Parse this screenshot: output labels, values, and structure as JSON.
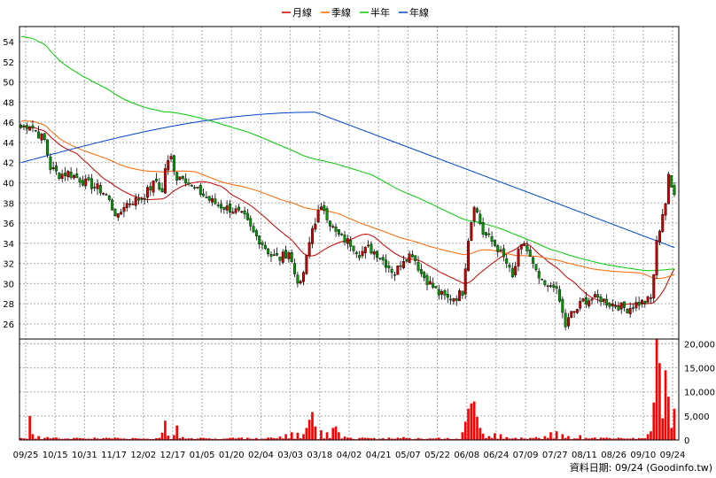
{
  "chart_data": {
    "type": "candlestick",
    "legend": [
      {
        "name": "月線",
        "color": "#cc0000"
      },
      {
        "name": "季線",
        "color": "#ff6600"
      },
      {
        "name": "半年",
        "color": "#00cc00"
      },
      {
        "name": "年線",
        "color": "#0044cc"
      }
    ],
    "price_axis": {
      "ticks": [
        26,
        28,
        30,
        32,
        34,
        36,
        38,
        40,
        42,
        44,
        46,
        48,
        50,
        52,
        54
      ],
      "ylim": [
        24.5,
        55.5
      ]
    },
    "volume_axis": {
      "ticks": [
        "0",
        "5,000",
        "10,000",
        "15,000",
        "20,000"
      ],
      "tick_values": [
        0,
        5000,
        10000,
        15000,
        20000
      ],
      "ylim": [
        0,
        21000
      ]
    },
    "x_ticks": [
      "09/25",
      "10/15",
      "10/31",
      "11/17",
      "12/02",
      "12/17",
      "01/05",
      "01/20",
      "02/04",
      "03/03",
      "03/18",
      "04/02",
      "04/21",
      "05/07",
      "05/22",
      "06/08",
      "06/24",
      "07/09",
      "07/27",
      "08/11",
      "08/26",
      "09/10",
      "09/24"
    ],
    "source_text": "資料日期: 09/24  (Goodinfo.tw)",
    "colors": {
      "up": "#cc0000",
      "down": "#009900",
      "volume": "#ff0000",
      "grid": "#aaaaaa"
    },
    "close_anchors": [
      [
        0,
        45.5
      ],
      [
        3,
        45.8
      ],
      [
        6,
        44.8
      ],
      [
        8,
        44.2
      ],
      [
        10,
        41.5
      ],
      [
        13,
        40.8
      ],
      [
        16,
        41
      ],
      [
        19,
        40.5
      ],
      [
        22,
        40
      ],
      [
        26,
        39.5
      ],
      [
        29,
        38.8
      ],
      [
        31,
        37.5
      ],
      [
        33,
        36.5
      ],
      [
        35,
        37.8
      ],
      [
        38,
        38.2
      ],
      [
        41,
        38.5
      ],
      [
        44,
        39.5
      ],
      [
        46,
        40.2
      ],
      [
        48,
        39
      ],
      [
        49,
        41.5
      ],
      [
        51,
        42.5
      ],
      [
        53,
        40.5
      ],
      [
        55,
        40.8
      ],
      [
        58,
        39.5
      ],
      [
        61,
        39
      ],
      [
        64,
        38.3
      ],
      [
        67,
        37.8
      ],
      [
        70,
        37.5
      ],
      [
        73,
        37.2
      ],
      [
        76,
        36.5
      ],
      [
        79,
        35
      ],
      [
        82,
        34
      ],
      [
        85,
        32.8
      ],
      [
        88,
        32.5
      ],
      [
        91,
        33.2
      ],
      [
        93,
        31
      ],
      [
        95,
        29.8
      ],
      [
        97,
        32.5
      ],
      [
        99,
        35.5
      ],
      [
        101,
        37
      ],
      [
        103,
        37.5
      ],
      [
        105,
        36
      ],
      [
        107,
        35
      ],
      [
        109,
        34.5
      ],
      [
        112,
        34
      ],
      [
        115,
        33
      ],
      [
        118,
        33.5
      ],
      [
        121,
        33
      ],
      [
        124,
        32
      ],
      [
        127,
        31
      ],
      [
        130,
        32.5
      ],
      [
        133,
        33
      ],
      [
        136,
        31
      ],
      [
        139,
        30
      ],
      [
        142,
        29
      ],
      [
        145,
        28.5
      ],
      [
        148,
        28.7
      ],
      [
        150,
        29.2
      ],
      [
        152,
        34.5
      ],
      [
        154,
        38
      ],
      [
        155,
        37
      ],
      [
        157,
        35
      ],
      [
        159,
        34.5
      ],
      [
        162,
        33.5
      ],
      [
        165,
        32
      ],
      [
        167,
        30.5
      ],
      [
        169,
        33
      ],
      [
        171,
        34
      ],
      [
        173,
        32.5
      ],
      [
        175,
        31
      ],
      [
        177,
        30
      ],
      [
        179,
        29.5
      ],
      [
        181,
        30
      ],
      [
        183,
        28.2
      ],
      [
        185,
        25.8
      ],
      [
        187,
        27
      ],
      [
        189,
        27.5
      ],
      [
        191,
        28.3
      ],
      [
        194,
        28.5
      ],
      [
        197,
        28.5
      ],
      [
        200,
        28
      ],
      [
        203,
        27.8
      ],
      [
        206,
        27.5
      ],
      [
        209,
        28
      ],
      [
        212,
        28.2
      ],
      [
        214,
        28.5
      ],
      [
        215,
        31
      ],
      [
        216,
        34
      ],
      [
        218,
        37
      ],
      [
        219,
        38
      ],
      [
        220,
        40.5
      ],
      [
        221,
        39.5
      ],
      [
        222,
        39.2
      ]
    ],
    "volume_anchors": [
      [
        0,
        400
      ],
      [
        3,
        5000
      ],
      [
        4,
        1200
      ],
      [
        6,
        800
      ],
      [
        9,
        600
      ],
      [
        12,
        500
      ],
      [
        16,
        300
      ],
      [
        20,
        400
      ],
      [
        25,
        500
      ],
      [
        30,
        400
      ],
      [
        35,
        300
      ],
      [
        40,
        300
      ],
      [
        45,
        200
      ],
      [
        48,
        1500
      ],
      [
        49,
        4000
      ],
      [
        50,
        900
      ],
      [
        52,
        1000
      ],
      [
        53,
        3000
      ],
      [
        55,
        600
      ],
      [
        60,
        300
      ],
      [
        65,
        200
      ],
      [
        70,
        300
      ],
      [
        75,
        500
      ],
      [
        80,
        400
      ],
      [
        85,
        500
      ],
      [
        88,
        700
      ],
      [
        90,
        1200
      ],
      [
        92,
        1600
      ],
      [
        94,
        1500
      ],
      [
        96,
        1200
      ],
      [
        97,
        2500
      ],
      [
        98,
        4200
      ],
      [
        99,
        5800
      ],
      [
        100,
        2800
      ],
      [
        102,
        2000
      ],
      [
        104,
        1600
      ],
      [
        106,
        2500
      ],
      [
        107,
        2800
      ],
      [
        108,
        1600
      ],
      [
        110,
        700
      ],
      [
        115,
        400
      ],
      [
        120,
        400
      ],
      [
        125,
        500
      ],
      [
        130,
        600
      ],
      [
        135,
        400
      ],
      [
        140,
        300
      ],
      [
        145,
        400
      ],
      [
        150,
        1600
      ],
      [
        151,
        3800
      ],
      [
        152,
        6500
      ],
      [
        153,
        7600
      ],
      [
        154,
        8000
      ],
      [
        155,
        4800
      ],
      [
        156,
        2500
      ],
      [
        157,
        1300
      ],
      [
        159,
        800
      ],
      [
        161,
        1400
      ],
      [
        163,
        1200
      ],
      [
        165,
        600
      ],
      [
        170,
        500
      ],
      [
        175,
        600
      ],
      [
        178,
        800
      ],
      [
        180,
        1600
      ],
      [
        182,
        1800
      ],
      [
        184,
        1200
      ],
      [
        186,
        800
      ],
      [
        190,
        1000
      ],
      [
        195,
        500
      ],
      [
        200,
        400
      ],
      [
        205,
        300
      ],
      [
        210,
        400
      ],
      [
        213,
        1200
      ],
      [
        214,
        1800
      ],
      [
        215,
        7800
      ],
      [
        216,
        21000
      ],
      [
        217,
        16000
      ],
      [
        218,
        4500
      ],
      [
        219,
        14500
      ],
      [
        220,
        9000
      ],
      [
        221,
        2500
      ],
      [
        222,
        6500
      ]
    ]
  }
}
